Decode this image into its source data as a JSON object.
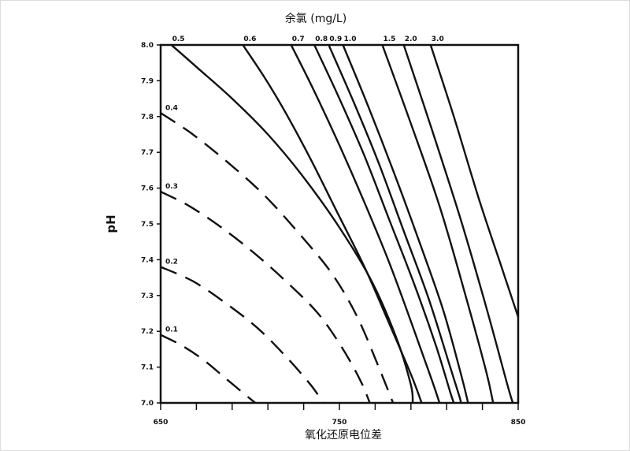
{
  "chart_data": {
    "type": "line",
    "title": "余氯 (mg/L)",
    "xlabel": "氧化还原电位差",
    "ylabel": "pH",
    "xlim": [
      650,
      850
    ],
    "ylim": [
      7.0,
      8.0
    ],
    "x_tick_labels": [
      "650",
      "750",
      "850"
    ],
    "y_tick_labels": [
      "7.0",
      "7.1",
      "7.2",
      "7.3",
      "7.4",
      "7.5",
      "7.6",
      "7.7",
      "7.8",
      "7.9",
      "8.0"
    ],
    "grid": false,
    "series": [
      {
        "name": "0.1",
        "dashed": true,
        "points": [
          [
            650,
            7.19
          ],
          [
            662,
            7.16
          ],
          [
            674,
            7.12
          ],
          [
            686,
            7.07
          ],
          [
            698,
            7.02
          ],
          [
            703,
            7.0
          ]
        ]
      },
      {
        "name": "0.2",
        "dashed": true,
        "points": [
          [
            650,
            7.38
          ],
          [
            668,
            7.34
          ],
          [
            686,
            7.28
          ],
          [
            704,
            7.21
          ],
          [
            720,
            7.13
          ],
          [
            734,
            7.05
          ],
          [
            741,
            7.0
          ]
        ]
      },
      {
        "name": "0.3",
        "dashed": true,
        "points": [
          [
            650,
            7.59
          ],
          [
            666,
            7.55
          ],
          [
            684,
            7.49
          ],
          [
            702,
            7.42
          ],
          [
            720,
            7.34
          ],
          [
            738,
            7.25
          ],
          [
            752,
            7.15
          ],
          [
            762,
            7.06
          ],
          [
            767,
            7.0
          ]
        ]
      },
      {
        "name": "0.4",
        "dashed": true,
        "points": [
          [
            650,
            7.81
          ],
          [
            668,
            7.75
          ],
          [
            688,
            7.67
          ],
          [
            708,
            7.58
          ],
          [
            728,
            7.47
          ],
          [
            746,
            7.36
          ],
          [
            760,
            7.24
          ],
          [
            772,
            7.1
          ],
          [
            780,
            7.0
          ]
        ]
      },
      {
        "name": "0.5",
        "dashed": false,
        "points": [
          [
            656,
            8.0
          ],
          [
            672,
            7.93
          ],
          [
            690,
            7.85
          ],
          [
            710,
            7.75
          ],
          [
            730,
            7.63
          ],
          [
            750,
            7.49
          ],
          [
            768,
            7.34
          ],
          [
            782,
            7.18
          ],
          [
            790,
            7.05
          ],
          [
            791,
            7.0
          ]
        ]
      },
      {
        "name": "0.6",
        "dashed": false,
        "points": [
          [
            696,
            8.0
          ],
          [
            708,
            7.91
          ],
          [
            720,
            7.81
          ],
          [
            734,
            7.68
          ],
          [
            748,
            7.54
          ],
          [
            764,
            7.38
          ],
          [
            778,
            7.22
          ],
          [
            790,
            7.08
          ],
          [
            796,
            7.0
          ]
        ]
      },
      {
        "name": "0.7",
        "dashed": false,
        "points": [
          [
            723,
            8.0
          ],
          [
            736,
            7.87
          ],
          [
            750,
            7.72
          ],
          [
            764,
            7.56
          ],
          [
            778,
            7.39
          ],
          [
            792,
            7.2
          ],
          [
            802,
            7.06
          ],
          [
            806,
            7.0
          ]
        ]
      },
      {
        "name": "0.8",
        "dashed": false,
        "points": [
          [
            736,
            8.0
          ],
          [
            750,
            7.85
          ],
          [
            764,
            7.69
          ],
          [
            778,
            7.51
          ],
          [
            792,
            7.33
          ],
          [
            804,
            7.16
          ],
          [
            812,
            7.03
          ],
          [
            814,
            7.0
          ]
        ]
      },
      {
        "name": "0.9",
        "dashed": false,
        "points": [
          [
            744,
            8.0
          ],
          [
            758,
            7.84
          ],
          [
            772,
            7.67
          ],
          [
            786,
            7.48
          ],
          [
            800,
            7.29
          ],
          [
            812,
            7.1
          ],
          [
            817,
            7.02
          ],
          [
            818,
            7.0
          ]
        ]
      },
      {
        "name": "1.0",
        "dashed": false,
        "points": [
          [
            752,
            8.0
          ],
          [
            766,
            7.83
          ],
          [
            780,
            7.65
          ],
          [
            794,
            7.46
          ],
          [
            808,
            7.26
          ],
          [
            818,
            7.08
          ],
          [
            822,
            7.0
          ]
        ]
      },
      {
        "name": "1.5",
        "dashed": false,
        "points": [
          [
            774,
            8.0
          ],
          [
            790,
            7.78
          ],
          [
            806,
            7.55
          ],
          [
            820,
            7.31
          ],
          [
            832,
            7.09
          ],
          [
            836,
            7.0
          ]
        ]
      },
      {
        "name": "2.0",
        "dashed": false,
        "points": [
          [
            786,
            8.0
          ],
          [
            802,
            7.76
          ],
          [
            818,
            7.51
          ],
          [
            832,
            7.27
          ],
          [
            844,
            7.05
          ],
          [
            847,
            7.0
          ]
        ]
      },
      {
        "name": "3.0",
        "dashed": false,
        "points": [
          [
            801,
            8.0
          ],
          [
            814,
            7.8
          ],
          [
            828,
            7.57
          ],
          [
            840,
            7.39
          ],
          [
            850,
            7.24
          ]
        ]
      }
    ]
  }
}
